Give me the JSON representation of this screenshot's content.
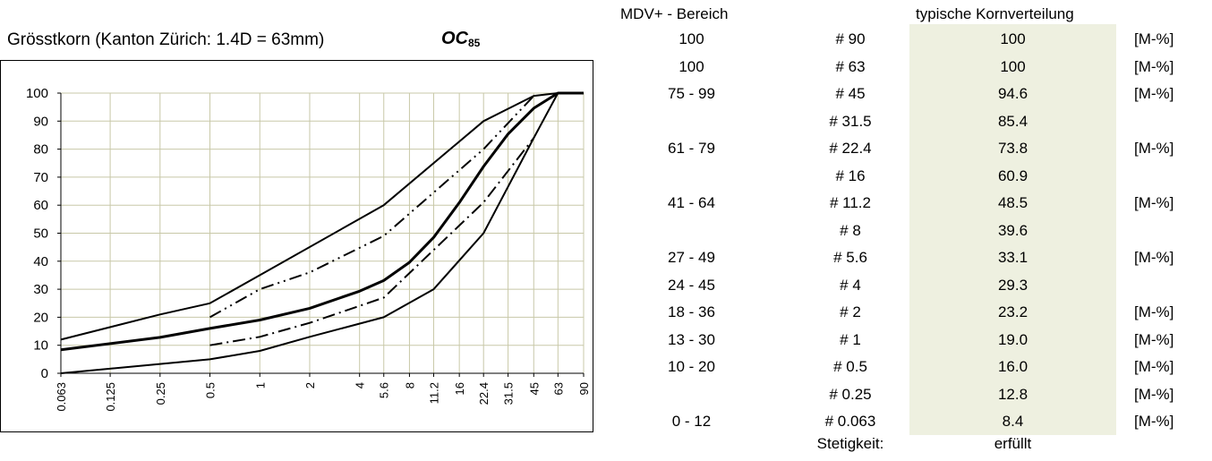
{
  "header": {
    "title": "Grösstkorn (Kanton Zürich: 1.4D = 63mm)",
    "oc_label": "OC",
    "oc_sub": "85",
    "col_range": "MDV+ - Bereich",
    "col_typ": "typische Kornverteilung"
  },
  "table": {
    "rows": [
      {
        "range": "100",
        "sieve": "# 90",
        "value": "100",
        "unit": "[M-%]"
      },
      {
        "range": "100",
        "sieve": "# 63",
        "value": "100",
        "unit": "[M-%]"
      },
      {
        "range": "75 - 99",
        "sieve": "# 45",
        "value": "94.6",
        "unit": "[M-%]"
      },
      {
        "range": "",
        "sieve": "# 31.5",
        "value": "85.4",
        "unit": ""
      },
      {
        "range": "61 - 79",
        "sieve": "# 22.4",
        "value": "73.8",
        "unit": "[M-%]"
      },
      {
        "range": "",
        "sieve": "# 16",
        "value": "60.9",
        "unit": ""
      },
      {
        "range": "41 - 64",
        "sieve": "# 11.2",
        "value": "48.5",
        "unit": "[M-%]"
      },
      {
        "range": "",
        "sieve": "# 8",
        "value": "39.6",
        "unit": ""
      },
      {
        "range": "27 - 49",
        "sieve": "# 5.6",
        "value": "33.1",
        "unit": "[M-%]"
      },
      {
        "range": "24 - 45",
        "sieve": "# 4",
        "value": "29.3",
        "unit": ""
      },
      {
        "range": "18 - 36",
        "sieve": "# 2",
        "value": "23.2",
        "unit": "[M-%]"
      },
      {
        "range": "13 - 30",
        "sieve": "# 1",
        "value": "19.0",
        "unit": "[M-%]"
      },
      {
        "range": "10 - 20",
        "sieve": "# 0.5",
        "value": "16.0",
        "unit": "[M-%]"
      },
      {
        "range": "",
        "sieve": "# 0.25",
        "value": "12.8",
        "unit": "[M-%]"
      },
      {
        "range": "0 - 12",
        "sieve": "# 0.063",
        "value": "8.4",
        "unit": "[M-%]"
      }
    ],
    "stetigkeit_label": "Stetigkeit:",
    "stetigkeit_value": "erfüllt"
  },
  "chart_data": {
    "type": "line",
    "title": "",
    "xlabel": "",
    "ylabel": "",
    "ylim": [
      0,
      100
    ],
    "yticks": [
      "0",
      "10",
      "20",
      "30",
      "40",
      "50",
      "60",
      "70",
      "80",
      "90",
      "100"
    ],
    "categories": [
      "0.063",
      "0.125",
      "0.25",
      "0.5",
      "1",
      "2",
      "4",
      "5.6",
      "8",
      "11.2",
      "16",
      "22.4",
      "31.5",
      "45",
      "63",
      "90"
    ],
    "grid": true,
    "series": [
      {
        "style": "upper-limit",
        "x": [
          "0.063",
          "0.25",
          "0.5",
          "1",
          "5.6",
          "22.4",
          "45",
          "63"
        ],
        "values": [
          12,
          21,
          25,
          35,
          60,
          90,
          99,
          100
        ]
      },
      {
        "style": "lower-limit",
        "x": [
          "0.063",
          "0.5",
          "1",
          "2",
          "5.6",
          "11.2",
          "22.4",
          "45",
          "63"
        ],
        "values": [
          0,
          5,
          8,
          13,
          20,
          30,
          50,
          84,
          100
        ]
      },
      {
        "style": "typical",
        "x": [
          "0.063",
          "0.25",
          "0.5",
          "1",
          "2",
          "4",
          "5.6",
          "8",
          "11.2",
          "16",
          "22.4",
          "31.5",
          "45",
          "63",
          "90"
        ],
        "values": [
          8.4,
          12.8,
          16.0,
          19.0,
          23.2,
          29.3,
          33.1,
          39.6,
          48.5,
          60.9,
          73.8,
          85.4,
          94.6,
          100,
          100
        ]
      },
      {
        "style": "dash-dot-upper",
        "x": [
          "0.5",
          "1",
          "2",
          "5.6",
          "22.4",
          "45"
        ],
        "values": [
          20,
          30,
          36,
          49,
          80,
          99
        ]
      },
      {
        "style": "dash-dot-lower",
        "x": [
          "0.5",
          "1",
          "2",
          "5.6",
          "22.4",
          "45"
        ],
        "values": [
          10,
          13,
          18,
          27,
          61,
          84
        ]
      }
    ]
  }
}
